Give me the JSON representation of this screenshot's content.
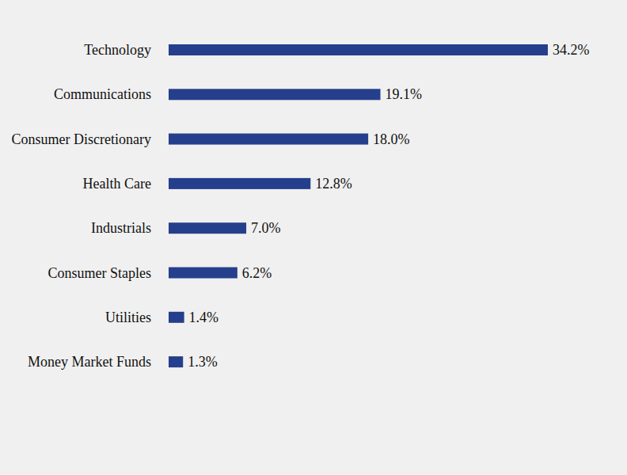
{
  "chart_data": {
    "type": "bar",
    "orientation": "horizontal",
    "categories": [
      "Technology",
      "Communications",
      "Consumer Discretionary",
      "Health Care",
      "Industrials",
      "Consumer Staples",
      "Utilities",
      "Money Market Funds"
    ],
    "values": [
      34.2,
      19.1,
      18.0,
      12.8,
      7.0,
      6.2,
      1.4,
      1.3
    ],
    "value_labels": [
      "34.2%",
      "19.1%",
      "18.0%",
      "12.8%",
      "7.0%",
      "6.2%",
      "1.4%",
      "1.3%"
    ],
    "color": "#253f8c",
    "xlim": [
      0,
      34.2
    ],
    "data_labels": true,
    "tick_labels": false,
    "grid": false
  }
}
